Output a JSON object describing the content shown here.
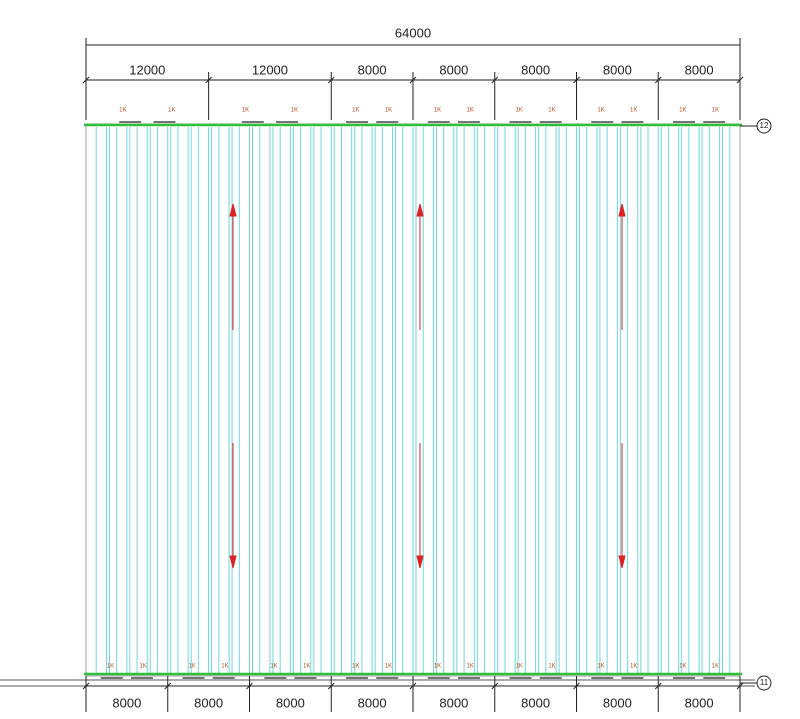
{
  "overall": 64000,
  "top_spans": [
    12000,
    12000,
    8000,
    8000,
    8000,
    8000,
    8000
  ],
  "bottom_spans": [
    8000,
    8000,
    8000,
    8000,
    8000,
    8000,
    8000,
    8000
  ],
  "axis_top": "12",
  "axis_bottom": "11",
  "tag": "1K"
}
